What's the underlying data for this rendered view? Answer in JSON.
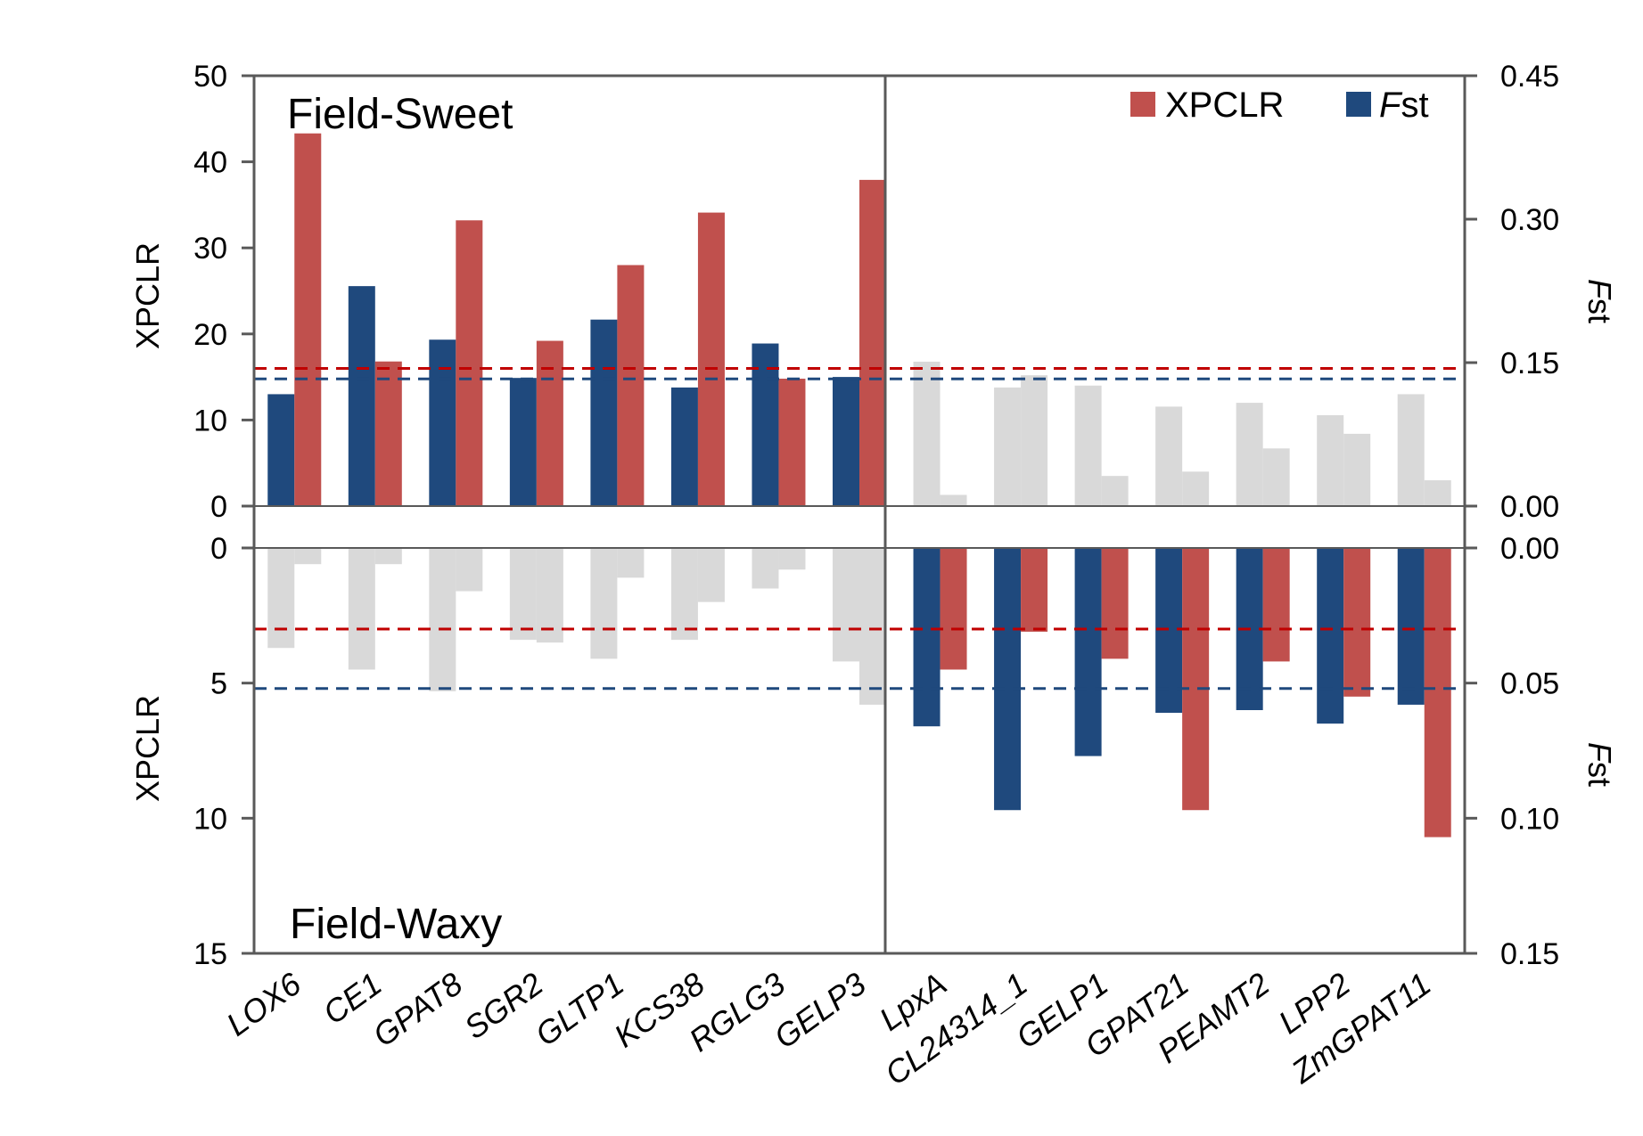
{
  "chart_data": {
    "type": "bar",
    "colors": {
      "xpclr": "#C0504D",
      "fst": "#1F497D",
      "muted": "#D9D9D9",
      "xpclr_threshold": "#C00000",
      "fst_threshold": "#1F497D",
      "axis": "#595959"
    },
    "legend": {
      "position": "top-right",
      "xpclr_label": "XPCLR",
      "fst_label_italic": "F",
      "fst_label_suffix": "st"
    },
    "genes": [
      "LOX6",
      "CE1",
      "GPAT8",
      "SGR2",
      "GLTP1",
      "KCS38",
      "RGLG3",
      "GELP3",
      "LpxA",
      "CL24314_1",
      "GELP1",
      "GPAT21",
      "PEAMT2",
      "LPP2",
      "ZmGPAT11"
    ],
    "highlighted_in_top": [
      "LOX6",
      "CE1",
      "GPAT8",
      "SGR2",
      "GLTP1",
      "KCS38",
      "RGLG3",
      "GELP3"
    ],
    "top_panel": {
      "label": "Field-Sweet",
      "left_axis": {
        "title": "XPCLR",
        "range": [
          0,
          50
        ],
        "ticks": [
          "0",
          "10",
          "20",
          "30",
          "40",
          "50"
        ]
      },
      "right_axis": {
        "title_italic": "F",
        "title_suffix": "st",
        "range": [
          0,
          0.45
        ],
        "ticks": [
          "0.00",
          "0.15",
          "0.30",
          "0.45"
        ]
      },
      "xpclr": [
        43.3,
        16.8,
        33.2,
        19.2,
        28.0,
        34.1,
        14.8,
        37.9,
        1.3,
        15.2,
        3.5,
        4.0,
        6.7,
        8.4,
        3.0
      ],
      "fst": [
        0.117,
        0.23,
        0.174,
        0.134,
        0.195,
        0.124,
        0.17,
        0.135,
        0.151,
        0.124,
        0.126,
        0.104,
        0.108,
        0.095,
        0.117
      ],
      "xpclr_threshold": 16.0,
      "fst_threshold": 0.133
    },
    "bottom_panel": {
      "label": "Field-Waxy",
      "left_axis": {
        "title": "XPCLR",
        "range": [
          0,
          15
        ],
        "ticks": [
          "0",
          "5",
          "10",
          "15"
        ],
        "inverted": true
      },
      "right_axis": {
        "title_italic": "F",
        "title_suffix": "st",
        "range": [
          0,
          0.15
        ],
        "ticks": [
          "0.00",
          "0.05",
          "0.10",
          "0.15"
        ],
        "inverted": true
      },
      "xpclr": [
        0.6,
        0.6,
        1.6,
        3.5,
        1.1,
        2.0,
        0.8,
        5.8,
        4.5,
        3.1,
        4.1,
        9.7,
        4.2,
        5.5,
        10.7
      ],
      "fst": [
        0.037,
        0.045,
        0.053,
        0.034,
        0.041,
        0.034,
        0.015,
        0.042,
        0.066,
        0.097,
        0.077,
        0.061,
        0.06,
        0.065,
        0.058
      ],
      "xpclr_threshold": 3.0,
      "fst_threshold": 0.052
    }
  }
}
